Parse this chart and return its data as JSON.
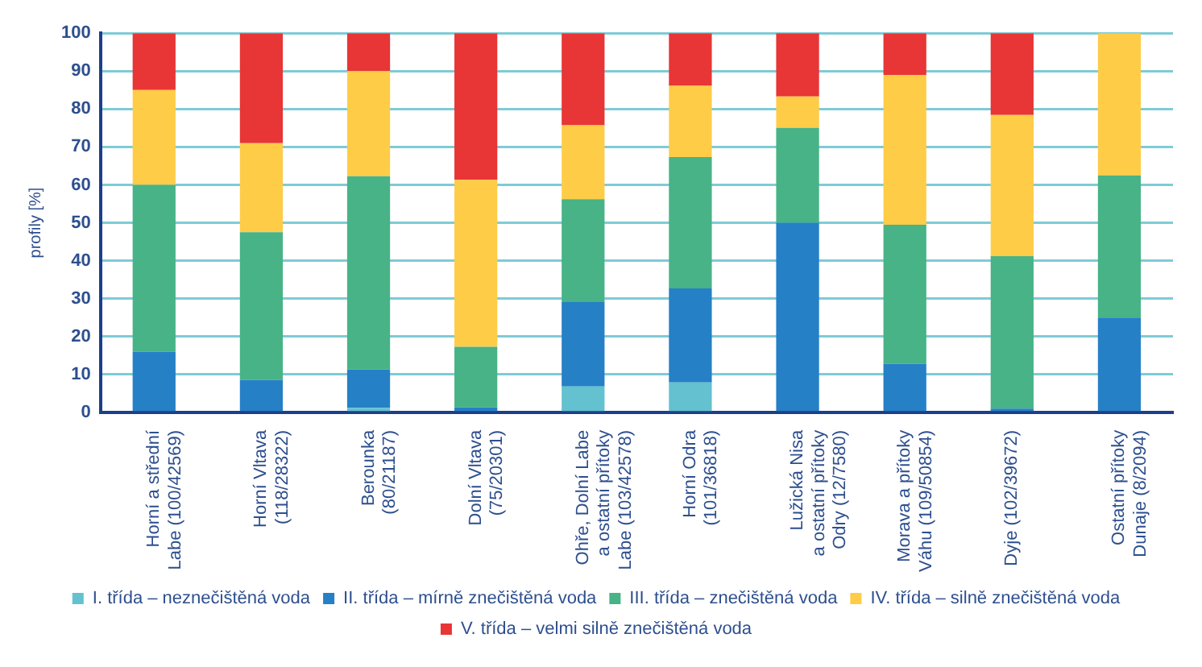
{
  "chart_data": {
    "type": "bar",
    "stacked": true,
    "ylabel": "profily [%]",
    "ylim": [
      0,
      100
    ],
    "yticks": [
      0,
      10,
      20,
      30,
      40,
      50,
      60,
      70,
      80,
      90,
      100
    ],
    "grid": "y",
    "legend": "bottom",
    "categories": [
      "Horní a střední\nLabe (100/42569)",
      "Horní Vltava\n(118/28322)",
      "Berounka\n(80/21187)",
      "Dolní Vltava\n(75/20301)",
      "Ohře, Dolní Labe\na ostatní přítoky\nLabe (103/42578)",
      "Horní Odra\n(101/36818)",
      "Lužická Nisa\na ostatní přítoky\nOdry (12/7580)",
      "Morava a přítoky\nVáhu (109/50854)",
      "Dyje (102/39672)",
      "Ostatní přítoky\nDunaje (8/2094)"
    ],
    "series": [
      {
        "name": "I. třída – neznečištěná voda",
        "color": "#63c1d0",
        "values": [
          0,
          0,
          1.2,
          0,
          6.8,
          7.9,
          0,
          0,
          0,
          0
        ]
      },
      {
        "name": "II. třída – mírně znečištěná voda",
        "color": "#2580c6",
        "values": [
          16,
          8.5,
          10.1,
          1.3,
          22.3,
          24.8,
          50,
          12.8,
          1,
          25
        ]
      },
      {
        "name": "III. třída – znečištěná voda",
        "color": "#47b386",
        "values": [
          44,
          39,
          51,
          16,
          27.1,
          34.6,
          25,
          36.7,
          40.2,
          37.5
        ]
      },
      {
        "name": "IV. třída – silně znečištěná voda",
        "color": "#fecc47",
        "values": [
          25,
          23.5,
          27.7,
          44,
          19.5,
          18.8,
          8.3,
          39.5,
          37.2,
          37.5
        ]
      },
      {
        "name": "V. třída – velmi silně znečištěná voda",
        "color": "#e83535",
        "values": [
          15,
          29,
          10,
          38.7,
          24.3,
          13.9,
          16.7,
          11,
          21.6,
          0
        ]
      }
    ]
  }
}
